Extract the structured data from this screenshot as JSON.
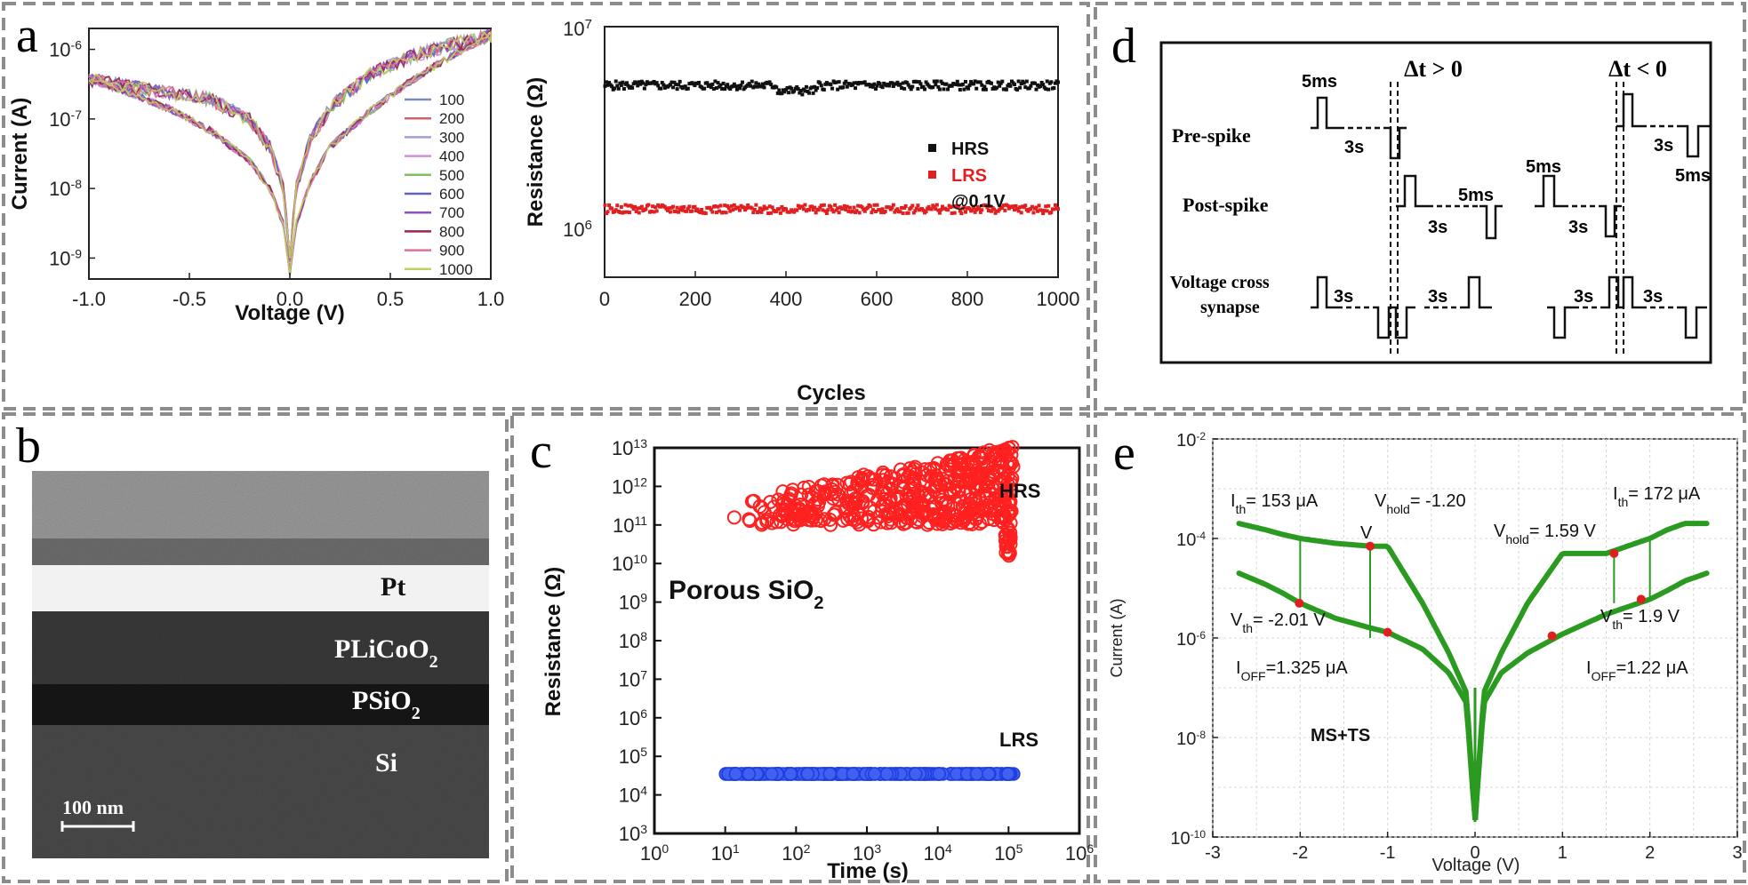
{
  "panels": {
    "a": "a",
    "b": "b",
    "c": "c",
    "d": "d",
    "e": "e"
  },
  "colors": {
    "panel_border": "#8c8c8c",
    "hrs_black": "#111111",
    "lrs_red": "#e02020",
    "c_hrs": "#ff2020",
    "c_lrs": "#1d3fe0",
    "e_curve": "#2a9a20",
    "e_marker": "#e02020"
  },
  "chart_data": [
    {
      "id": "a1",
      "type": "line",
      "xlabel": "Voltage (V)",
      "ylabel": "Current (A)",
      "xlim": [
        -1.0,
        1.0
      ],
      "ylim": [
        5e-10,
        2e-06
      ],
      "yscale": "log",
      "xticks": [
        "-1.0",
        "-0.5",
        "0.0",
        "0.5",
        "1.0"
      ],
      "yticks": [
        "10-9",
        "10-8",
        "10-7",
        "10-6"
      ],
      "legend": [
        "100",
        "200",
        "300",
        "400",
        "500",
        "600",
        "700",
        "800",
        "900",
        "1000"
      ],
      "legend_colors": [
        "#7a8fb8",
        "#d06070",
        "#a0a0d8",
        "#d090d8",
        "#80c060",
        "#6060c0",
        "#9050c0",
        "#a02050",
        "#e070a0",
        "#c0d060"
      ],
      "legend_position": "right",
      "series_shape": {
        "x": [
          -1.0,
          -0.8,
          -0.6,
          -0.4,
          -0.2,
          -0.1,
          -0.03,
          0.0,
          0.03,
          0.1,
          0.2,
          0.4,
          0.6,
          0.8,
          1.0
        ],
        "lower_branch_A": [
          3.8e-07,
          2.4e-07,
          1.4e-07,
          7e-08,
          2.5e-08,
          1e-08,
          3e-09,
          6e-10,
          3e-09,
          1.2e-08,
          4e-08,
          1.3e-07,
          3.5e-07,
          8e-07,
          1.6e-06
        ],
        "upper_branch_A": [
          3.8e-07,
          3e-07,
          2.4e-07,
          2e-07,
          1e-07,
          4e-08,
          1e-08,
          1e-09,
          1e-08,
          5e-08,
          1.5e-07,
          4.5e-07,
          8e-07,
          1.2e-06,
          1.6e-06
        ]
      }
    },
    {
      "id": "a2",
      "type": "scatter",
      "xlabel": "Cycles",
      "ylabel": "Resistance (Ω)",
      "xlim": [
        0,
        1000
      ],
      "ylim": [
        300000.0,
        10000000.0
      ],
      "yscale": "log",
      "xticks": [
        "0",
        "200",
        "400",
        "600",
        "800",
        "1000"
      ],
      "ytop_tick": "107",
      "ymid_tick": "106",
      "legend": [
        "HRS",
        "LRS"
      ],
      "annotation": "@0.1V",
      "series": [
        {
          "name": "HRS",
          "level": 4400000.0
        },
        {
          "name": "LRS",
          "level": 780000.0
        }
      ]
    },
    {
      "id": "c",
      "type": "scatter",
      "xlabel": "Time (s)",
      "ylabel": "Resistance (Ω)",
      "xscale": "log",
      "yscale": "log",
      "xlim": [
        1,
        1000000.0
      ],
      "ylim": [
        1000.0,
        10000000000000.0
      ],
      "xticks": [
        "100",
        "101",
        "102",
        "103",
        "104",
        "105",
        "106"
      ],
      "yticks": [
        "103",
        "104",
        "105",
        "106",
        "107",
        "108",
        "109",
        "1010",
        "1011",
        "1012",
        "1013"
      ],
      "annotation": "Porous SiO2",
      "series": [
        {
          "name": "HRS",
          "x_range": [
            10,
            120000.0
          ],
          "y_range": [
            15000000000.0,
            12000000000000.0
          ]
        },
        {
          "name": "LRS",
          "x_range": [
            10,
            120000.0
          ],
          "y": 35000.0
        }
      ]
    },
    {
      "id": "d",
      "type": "diagram",
      "titles": [
        "Δt > 0",
        "Δt < 0"
      ],
      "rows": [
        "Pre-spike",
        "Post-spike",
        "Voltage cross",
        "synapse"
      ],
      "labels": {
        "pulse": "5ms",
        "gap": "3s"
      }
    },
    {
      "id": "e",
      "type": "line",
      "xlabel": "Voltage (V)",
      "ylabel": "Current (A)",
      "xlim": [
        -3,
        3
      ],
      "ylim": [
        1e-10,
        0.01
      ],
      "yscale": "log",
      "xticks": [
        "-3",
        "-2",
        "-1",
        "0",
        "1",
        "2",
        "3"
      ],
      "yticks": [
        "10-10",
        "10-8",
        "10-6",
        "10-4",
        "10-2"
      ],
      "annotation": "MS+TS",
      "labels": {
        "ith_left": "Ith= 153 μA",
        "vhold_left": "Vhold= -1.20",
        "vhold_left_unit": "V",
        "ith_right": "Ith= 172 μA",
        "vhold_right": "Vhold= 1.59 V",
        "vth_left": "Vth= -2.01 V",
        "vth_right": "Vth= 1.9 V",
        "ioff_left": "IOFF=1.325 μA",
        "ioff_right": "IOFF=1.22 μA"
      },
      "markers": [
        {
          "x": -2.01,
          "y": 5e-06
        },
        {
          "x": -1.2,
          "y": 7e-05
        },
        {
          "x": -1.0,
          "y": 1.3e-06
        },
        {
          "x": 0.88,
          "y": 1.1e-06
        },
        {
          "x": 1.59,
          "y": 5e-05
        },
        {
          "x": 1.9,
          "y": 6e-06
        }
      ],
      "curve": {
        "x": [
          -2.7,
          -2.4,
          -2.2,
          -2.0,
          -1.6,
          -1.2,
          -1.0,
          -0.6,
          -0.3,
          -0.1,
          0.0,
          0.1,
          0.3,
          0.6,
          1.0,
          1.5,
          2.0,
          2.2,
          2.4,
          2.65
        ],
        "lower_A": [
          2e-05,
          1.2e-05,
          8e-06,
          5e-06,
          2.5e-06,
          1.6e-06,
          1.3e-06,
          6e-07,
          2e-07,
          5e-08,
          2e-10,
          5e-08,
          2e-07,
          5e-07,
          1.2e-06,
          3e-06,
          6e-06,
          9e-06,
          1.4e-05,
          2e-05
        ],
        "upper_A": [
          0.0002,
          0.00015,
          0.00012,
          0.0001,
          8e-05,
          7e-05,
          7e-05,
          5e-06,
          5e-07,
          8e-08,
          2e-10,
          8e-08,
          5e-07,
          5e-06,
          5e-05,
          5e-05,
          0.0001,
          0.00015,
          0.0002,
          0.0002
        ]
      }
    }
  ],
  "image_b": {
    "layers": [
      "Pt",
      "PLiCoO2",
      "PSiO2",
      "Si"
    ],
    "scale_bar": "100 nm"
  }
}
